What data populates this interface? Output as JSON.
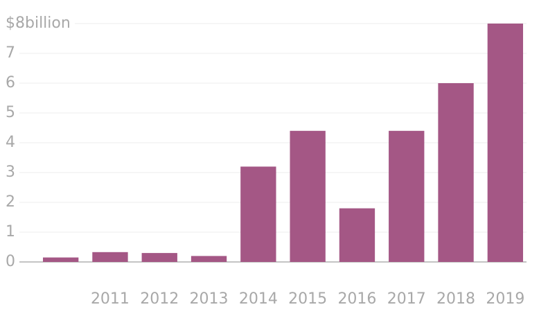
{
  "chart_data": {
    "type": "bar",
    "categories": [
      null,
      "2011",
      "2012",
      "2013",
      "2014",
      "2015",
      "2016",
      "2017",
      "2018",
      "2019"
    ],
    "values": [
      0.15,
      0.33,
      0.3,
      0.2,
      3.2,
      4.4,
      1.8,
      4.4,
      6.0,
      8.0
    ],
    "color": "#a45785",
    "ylim": [
      0,
      8
    ],
    "yticks": [
      0,
      1,
      2,
      3,
      4,
      5,
      6,
      7,
      {
        "value": 8,
        "label": "$8billion"
      }
    ],
    "grid": true
  }
}
